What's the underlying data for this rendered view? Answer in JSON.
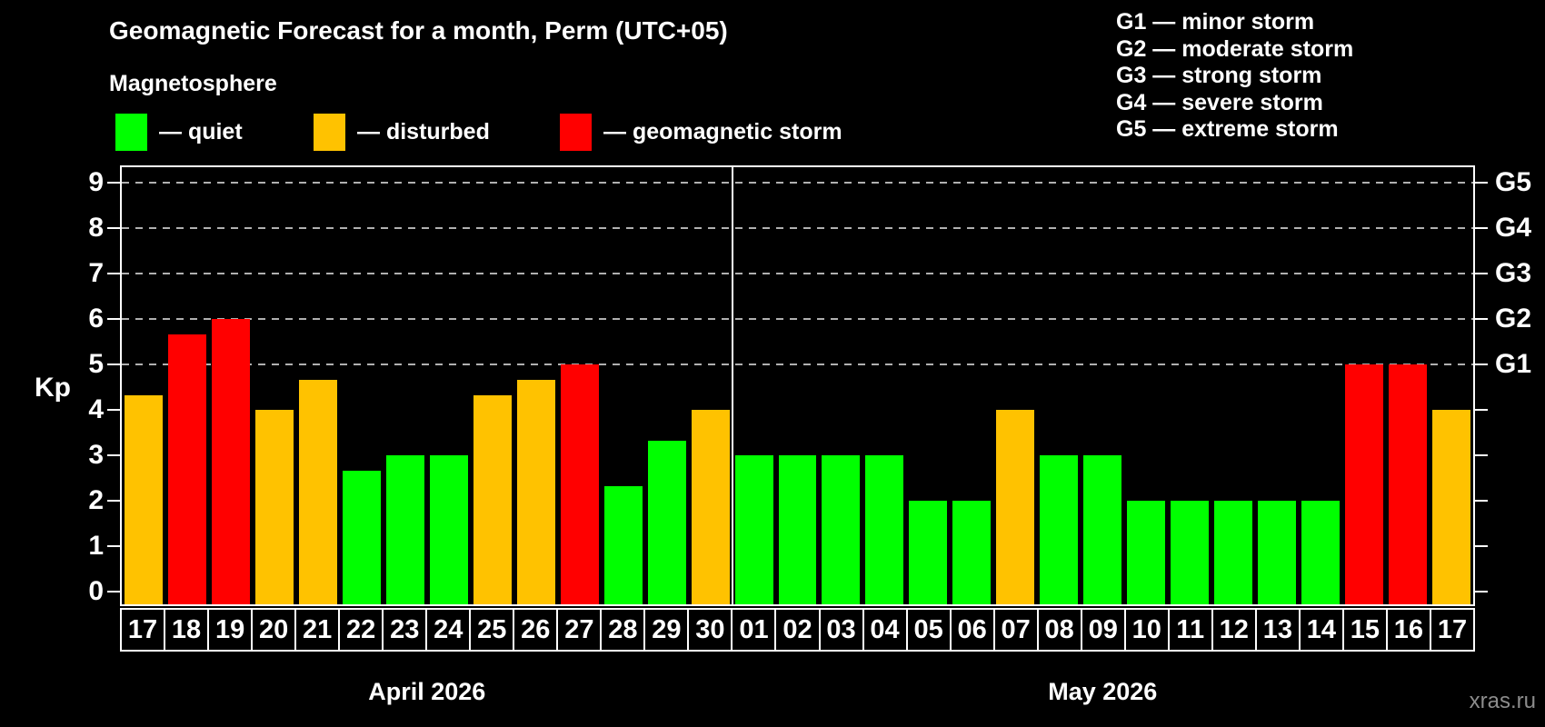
{
  "title": "Geomagnetic Forecast for a month, Perm (UTC+05)",
  "subtitle": "Magnetosphere",
  "watermark": "xras.ru",
  "colors": {
    "quiet": "#00ff00",
    "disturbed": "#ffc200",
    "storm": "#ff0000",
    "grid": "#b0b0b0",
    "axis": "#ffffff",
    "watermark": "#8c8c8c"
  },
  "legend": {
    "items": [
      {
        "key": "quiet",
        "label": "— quiet"
      },
      {
        "key": "disturbed",
        "label": "— disturbed"
      },
      {
        "key": "storm",
        "label": "— geomagnetic storm"
      }
    ]
  },
  "g_legend": [
    "G1 — minor storm",
    "G2 — moderate storm",
    "G3 — strong storm",
    "G4 — severe storm",
    "G5 — extreme storm"
  ],
  "y_axis": {
    "label": "Kp",
    "ticks": [
      "0",
      "1",
      "2",
      "3",
      "4",
      "5",
      "6",
      "7",
      "8",
      "9"
    ]
  },
  "months": [
    {
      "label": "April 2026"
    },
    {
      "label": "May 2026"
    }
  ],
  "chart_data": {
    "type": "bar",
    "title": "Geomagnetic Forecast for a month, Perm (UTC+05)",
    "ylabel": "Kp",
    "ylim": [
      0,
      9
    ],
    "gridlines_at": [
      5,
      6,
      7,
      8,
      9
    ],
    "right_axis_labels": [
      {
        "label": "G1",
        "kp": 5
      },
      {
        "label": "G2",
        "kp": 6
      },
      {
        "label": "G3",
        "kp": 7
      },
      {
        "label": "G4",
        "kp": 8
      },
      {
        "label": "G5",
        "kp": 9
      }
    ],
    "legend_position": "top",
    "month_boundary_index": 14,
    "bars": [
      {
        "month": "April 2026",
        "date": "17",
        "kp": 4.33,
        "status": "disturbed"
      },
      {
        "month": "April 2026",
        "date": "18",
        "kp": 5.67,
        "status": "storm"
      },
      {
        "month": "April 2026",
        "date": "19",
        "kp": 6.0,
        "status": "storm"
      },
      {
        "month": "April 2026",
        "date": "20",
        "kp": 4.0,
        "status": "disturbed"
      },
      {
        "month": "April 2026",
        "date": "21",
        "kp": 4.67,
        "status": "disturbed"
      },
      {
        "month": "April 2026",
        "date": "22",
        "kp": 2.67,
        "status": "quiet"
      },
      {
        "month": "April 2026",
        "date": "23",
        "kp": 3.0,
        "status": "quiet"
      },
      {
        "month": "April 2026",
        "date": "24",
        "kp": 3.0,
        "status": "quiet"
      },
      {
        "month": "April 2026",
        "date": "25",
        "kp": 4.33,
        "status": "disturbed"
      },
      {
        "month": "April 2026",
        "date": "26",
        "kp": 4.67,
        "status": "disturbed"
      },
      {
        "month": "April 2026",
        "date": "27",
        "kp": 5.0,
        "status": "storm"
      },
      {
        "month": "April 2026",
        "date": "28",
        "kp": 2.33,
        "status": "quiet"
      },
      {
        "month": "April 2026",
        "date": "29",
        "kp": 3.33,
        "status": "quiet"
      },
      {
        "month": "April 2026",
        "date": "30",
        "kp": 4.0,
        "status": "disturbed"
      },
      {
        "month": "May 2026",
        "date": "01",
        "kp": 3.0,
        "status": "quiet"
      },
      {
        "month": "May 2026",
        "date": "02",
        "kp": 3.0,
        "status": "quiet"
      },
      {
        "month": "May 2026",
        "date": "03",
        "kp": 3.0,
        "status": "quiet"
      },
      {
        "month": "May 2026",
        "date": "04",
        "kp": 3.0,
        "status": "quiet"
      },
      {
        "month": "May 2026",
        "date": "05",
        "kp": 2.0,
        "status": "quiet"
      },
      {
        "month": "May 2026",
        "date": "06",
        "kp": 2.0,
        "status": "quiet"
      },
      {
        "month": "May 2026",
        "date": "07",
        "kp": 4.0,
        "status": "disturbed"
      },
      {
        "month": "May 2026",
        "date": "08",
        "kp": 3.0,
        "status": "quiet"
      },
      {
        "month": "May 2026",
        "date": "09",
        "kp": 3.0,
        "status": "quiet"
      },
      {
        "month": "May 2026",
        "date": "10",
        "kp": 2.0,
        "status": "quiet"
      },
      {
        "month": "May 2026",
        "date": "11",
        "kp": 2.0,
        "status": "quiet"
      },
      {
        "month": "May 2026",
        "date": "12",
        "kp": 2.0,
        "status": "quiet"
      },
      {
        "month": "May 2026",
        "date": "13",
        "kp": 2.0,
        "status": "quiet"
      },
      {
        "month": "May 2026",
        "date": "14",
        "kp": 2.0,
        "status": "quiet"
      },
      {
        "month": "May 2026",
        "date": "15",
        "kp": 5.0,
        "status": "storm"
      },
      {
        "month": "May 2026",
        "date": "16",
        "kp": 5.0,
        "status": "storm"
      },
      {
        "month": "May 2026",
        "date": "17",
        "kp": 4.0,
        "status": "disturbed"
      }
    ]
  }
}
